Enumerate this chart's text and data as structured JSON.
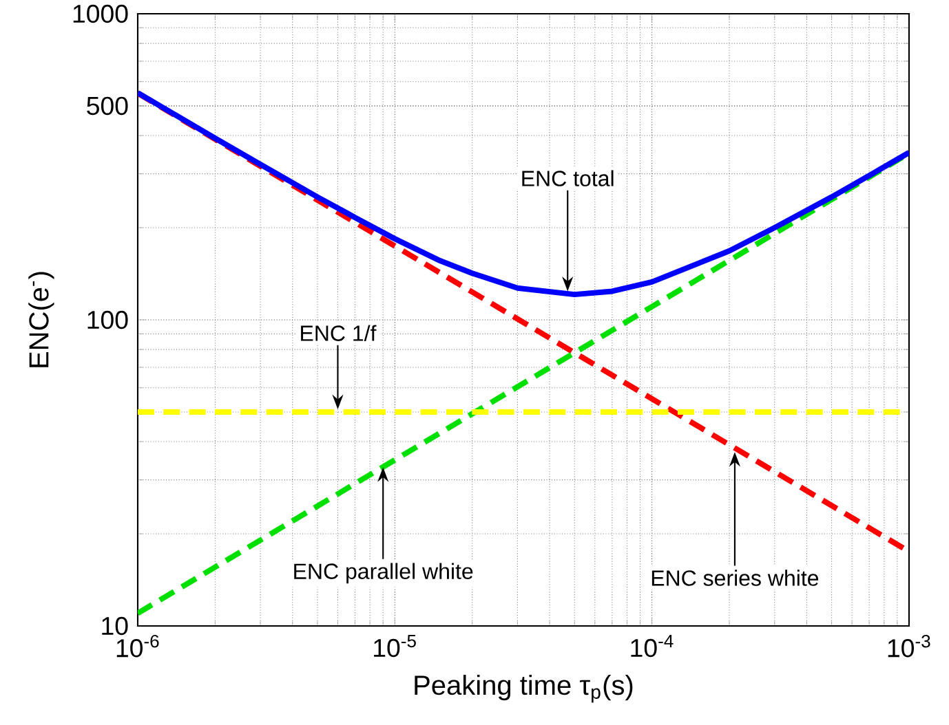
{
  "chart_data": {
    "type": "line",
    "xlabel": "Peaking time τ$_{p}$(s)",
    "ylabel": "ENC(e$^{-}$)",
    "log": "xy",
    "grid": true,
    "xlim": [
      1e-06,
      0.001
    ],
    "ylim": [
      10,
      1000
    ],
    "xticks": [
      {
        "value": 1e-06,
        "label": "10$^{-6}$"
      },
      {
        "value": 1e-05,
        "label": "10$^{-5}$"
      },
      {
        "value": 0.0001,
        "label": "10$^{-4}$"
      },
      {
        "value": 0.001,
        "label": "10$^{-3}$"
      }
    ],
    "yticks": [
      10,
      100,
      500,
      1000
    ],
    "series": [
      {
        "color": "#ff0000",
        "line_style": "dashed",
        "x": [
          1e-06,
          0.001
        ],
        "values": [
          550,
          17.5
        ]
      },
      {
        "color": "#00e000",
        "line_style": "dashed",
        "x": [
          1e-06,
          0.001
        ],
        "values": [
          11,
          350
        ]
      },
      {
        "color": "#ffff00",
        "line_style": "dashed",
        "x": [
          1e-06,
          0.001
        ],
        "values": [
          50,
          50
        ]
      },
      {
        "color": "#0000ff",
        "line_style": "solid",
        "x": [
          1e-06,
          2e-06,
          3e-06,
          5e-06,
          7e-06,
          1e-05,
          1.5e-05,
          2e-05,
          3e-05,
          5e-05,
          7e-05,
          0.0001,
          0.0002,
          0.0003,
          0.0005,
          0.0007,
          0.001
        ],
        "values": [
          552,
          392,
          322,
          252,
          216,
          184,
          156,
          142,
          127,
          121,
          124,
          133,
          168,
          200,
          252,
          296,
          352
        ]
      }
    ],
    "annotations": [
      {
        "text": "ENC total",
        "x": 4.7e-05,
        "y": 124
      },
      {
        "text": "ENC 1/f",
        "x": 6e-06,
        "y": 51
      },
      {
        "text": "ENC parallel white",
        "x": 9e-06,
        "y": 33
      },
      {
        "text": "ENC series white",
        "x": 0.00021,
        "y": 37
      }
    ]
  }
}
